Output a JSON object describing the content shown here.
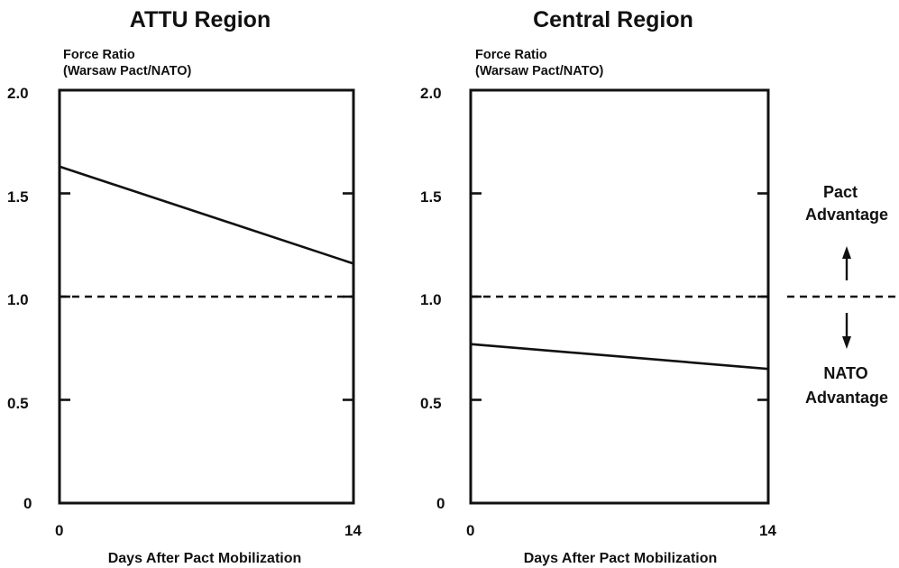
{
  "chart_data": [
    {
      "type": "line",
      "title": "ATTU Region",
      "ylabel": "Force Ratio\n(Warsaw Pact/NATO)",
      "ylabel_lines": [
        "Force Ratio",
        "(Warsaw Pact/NATO)"
      ],
      "xlabel": "Days After Pact Mobilization",
      "xlim": [
        0,
        14
      ],
      "ylim": [
        0,
        2.0
      ],
      "x_ticks": [
        "0",
        "14"
      ],
      "y_ticks": [
        "0",
        "0.5",
        "1.0",
        "1.5",
        "2.0"
      ],
      "grid": false,
      "series": [
        {
          "x": [
            0,
            14
          ],
          "y": [
            1.63,
            1.16
          ],
          "style": "solid"
        }
      ],
      "reference_lines": [
        {
          "y": 1.0,
          "style": "dashed"
        }
      ]
    },
    {
      "type": "line",
      "title": "Central Region",
      "ylabel": "Force Ratio\n(Warsaw Pact/NATO)",
      "ylabel_lines": [
        "Force Ratio",
        "(Warsaw Pact/NATO)"
      ],
      "xlabel": "Days After Pact Mobilization",
      "xlim": [
        0,
        14
      ],
      "ylim": [
        0,
        2.0
      ],
      "x_ticks": [
        "0",
        "14"
      ],
      "y_ticks": [
        "0",
        "0.5",
        "1.0",
        "1.5",
        "2.0"
      ],
      "grid": false,
      "series": [
        {
          "x": [
            0,
            14
          ],
          "y": [
            0.77,
            0.65
          ],
          "style": "solid"
        }
      ],
      "reference_lines": [
        {
          "y": 1.0,
          "style": "dashed"
        }
      ]
    }
  ],
  "annotations": {
    "pact_advantage_lines": [
      "Pact",
      "Advantage"
    ],
    "nato_advantage_lines": [
      "NATO",
      "Advantage"
    ]
  }
}
